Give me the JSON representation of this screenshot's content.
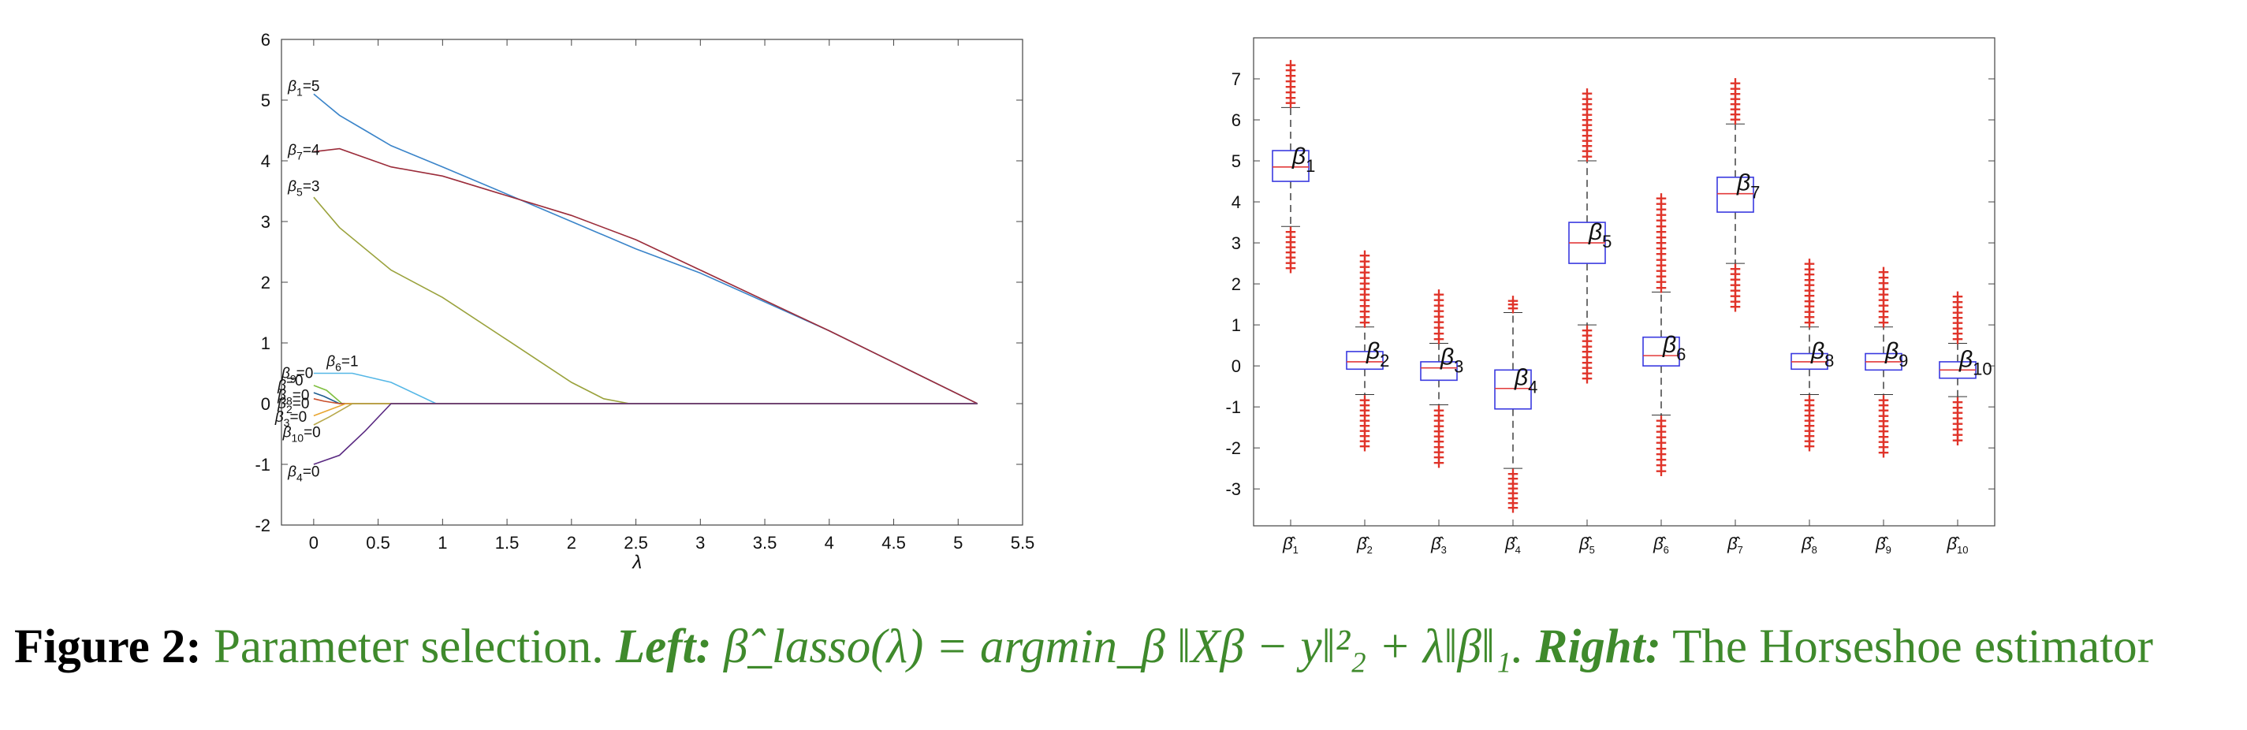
{
  "chart_data": [
    {
      "type": "line",
      "xlabel": "λ",
      "ylabel": "",
      "xlim": [
        -0.25,
        5.5
      ],
      "ylim": [
        -2,
        6
      ],
      "xticks": [
        "0",
        "0.5",
        "1",
        "1.5",
        "2",
        "2.5",
        "3",
        "3.5",
        "4",
        "4.5",
        "5",
        "5.5"
      ],
      "yticks": [
        "-2",
        "-1",
        "0",
        "1",
        "2",
        "3",
        "4",
        "5",
        "6"
      ],
      "grid": false,
      "series": [
        {
          "label": "β1=5",
          "sub": "1",
          "eq": "=5",
          "color": "#3a84c9",
          "x": [
            0,
            0.2,
            0.4,
            0.6,
            1.0,
            1.5,
            2.0,
            2.5,
            3.0,
            4.0,
            5.15
          ],
          "y": [
            5.1,
            4.75,
            4.5,
            4.25,
            3.9,
            3.45,
            3.0,
            2.55,
            2.15,
            1.2,
            0
          ]
        },
        {
          "label": "β7=4",
          "sub": "7",
          "eq": "=4",
          "color": "#9b2c3a",
          "x": [
            0,
            0.2,
            0.6,
            1.0,
            2.0,
            2.5,
            3.0,
            4.0,
            5.15
          ],
          "y": [
            4.15,
            4.2,
            3.9,
            3.75,
            3.1,
            2.7,
            2.2,
            1.2,
            0
          ]
        },
        {
          "label": "β5=3",
          "sub": "5",
          "eq": "=3",
          "color": "#9aa23c",
          "x": [
            0,
            0.2,
            0.6,
            1.0,
            1.5,
            2.0,
            2.25,
            2.45,
            5.15
          ],
          "y": [
            3.4,
            2.9,
            2.2,
            1.75,
            1.05,
            0.35,
            0.08,
            0,
            0
          ]
        },
        {
          "label": "β6=1",
          "sub": "6",
          "eq": "=1",
          "color": "#55b7e6",
          "x": [
            0,
            0.3,
            0.6,
            0.95,
            5.15
          ],
          "y": [
            0.5,
            0.5,
            0.35,
            0,
            0
          ]
        },
        {
          "label": "β9=0",
          "sub": "9",
          "eq": "=0",
          "color": "#7fbf3f",
          "x": [
            0,
            0.1,
            0.22,
            5.15
          ],
          "y": [
            0.3,
            0.22,
            0,
            0
          ]
        },
        {
          "label": "β8=0",
          "sub": "8",
          "eq": "=0",
          "color": "#1f5d8f",
          "x": [
            0,
            0.08,
            0.2,
            5.15
          ],
          "y": [
            0.18,
            0.12,
            0,
            0
          ]
        },
        {
          "label": "β2=0",
          "sub": "2",
          "eq": "=0",
          "color": "#c94e2a",
          "x": [
            0,
            0.08,
            0.2,
            5.15
          ],
          "y": [
            0.08,
            0.04,
            0,
            0
          ]
        },
        {
          "label": "β3=0",
          "sub": "3",
          "eq": "=0",
          "color": "#e8a530",
          "x": [
            0,
            0.1,
            0.25,
            5.15
          ],
          "y": [
            -0.2,
            -0.12,
            0,
            0
          ]
        },
        {
          "label": "β10=0",
          "sub": "10",
          "eq": "=0",
          "color": "#b7a84a",
          "x": [
            0,
            0.12,
            0.3,
            5.15
          ],
          "y": [
            -0.35,
            -0.22,
            0,
            0
          ]
        },
        {
          "label": "β4=0",
          "sub": "4",
          "eq": "=0",
          "color": "#5a2a82",
          "x": [
            0,
            0.2,
            0.4,
            0.6,
            5.15
          ],
          "y": [
            -1.0,
            -0.85,
            -0.45,
            0,
            0
          ]
        }
      ],
      "annotations": [
        {
          "sub": "1",
          "eq": "=5",
          "x": -0.2,
          "y": 5.15
        },
        {
          "sub": "7",
          "eq": "=4",
          "x": -0.2,
          "y": 4.1
        },
        {
          "sub": "5",
          "eq": "=3",
          "x": -0.2,
          "y": 3.5
        },
        {
          "sub": "9",
          "eq": "=0",
          "x": -0.25,
          "y": 0.42
        },
        {
          "sub": "6",
          "eq": "=1",
          "x": 0.1,
          "y": 0.62
        },
        {
          "sub": "",
          "eq": "=0",
          "x": -0.28,
          "y": 0.22
        },
        {
          "sub": "8",
          "eq": "=0",
          "x": -0.28,
          "y": 0.06
        },
        {
          "sub": "2",
          "eq": "=0",
          "x": -0.28,
          "y": -0.08
        },
        {
          "sub": "3",
          "eq": "=0",
          "x": -0.3,
          "y": -0.3
        },
        {
          "sub": "10",
          "eq": "=0",
          "x": -0.24,
          "y": -0.55
        },
        {
          "sub": "4",
          "eq": "=0",
          "x": -0.2,
          "y": -1.2
        }
      ]
    },
    {
      "type": "box",
      "xlabel": "",
      "ylabel": "",
      "ylim": [
        -3.9,
        8
      ],
      "yticks": [
        "-3",
        "-2",
        "-1",
        "0",
        "1",
        "2",
        "3",
        "4",
        "5",
        "6",
        "7"
      ],
      "grid": false,
      "box_color": "#3a3ae0",
      "median_color": "#e23a3a",
      "outlier_color": "#e0342a",
      "categories": [
        "1",
        "2",
        "3",
        "4",
        "5",
        "6",
        "7",
        "8",
        "9",
        "10"
      ],
      "boxes": [
        {
          "q1": 4.5,
          "median": 4.85,
          "q3": 5.25,
          "wlo": 3.4,
          "whi": 6.3,
          "olo": 2.4,
          "ohi": 7.35
        },
        {
          "q1": -0.08,
          "median": 0.1,
          "q3": 0.35,
          "wlo": -0.7,
          "whi": 0.95,
          "olo": -1.95,
          "ohi": 2.7
        },
        {
          "q1": -0.35,
          "median": -0.05,
          "q3": 0.1,
          "wlo": -0.95,
          "whi": 0.55,
          "olo": -2.35,
          "ohi": 1.75
        },
        {
          "q1": -1.05,
          "median": -0.55,
          "q3": -0.1,
          "wlo": -2.5,
          "whi": 1.3,
          "olo": -3.45,
          "ohi": 1.6
        },
        {
          "q1": 2.5,
          "median": 3.0,
          "q3": 3.5,
          "wlo": 1.0,
          "whi": 5.0,
          "olo": -0.3,
          "ohi": 6.65
        },
        {
          "q1": 0.0,
          "median": 0.25,
          "q3": 0.7,
          "wlo": -1.2,
          "whi": 1.8,
          "olo": -2.55,
          "ohi": 4.1
        },
        {
          "q1": 3.75,
          "median": 4.2,
          "q3": 4.6,
          "wlo": 2.5,
          "whi": 5.9,
          "olo": 1.45,
          "ohi": 6.9
        },
        {
          "q1": -0.08,
          "median": 0.1,
          "q3": 0.3,
          "wlo": -0.7,
          "whi": 0.95,
          "olo": -1.95,
          "ohi": 2.5
        },
        {
          "q1": -0.1,
          "median": 0.1,
          "q3": 0.3,
          "wlo": -0.7,
          "whi": 0.95,
          "olo": -2.1,
          "ohi": 2.3
        },
        {
          "q1": -0.3,
          "median": -0.1,
          "q3": 0.1,
          "wlo": -0.75,
          "whi": 0.55,
          "olo": -1.8,
          "ohi": 1.7
        }
      ]
    }
  ],
  "caption": {
    "lead": "Figure 2:",
    "part1": " Parameter selection. ",
    "left": "Left:",
    "math": " β̂_lasso(λ) = argmin_β ‖Xβ − y‖²₂ + λ‖β‖₁.",
    "right": "Right:",
    "part2": " The Horseshoe estimator"
  }
}
